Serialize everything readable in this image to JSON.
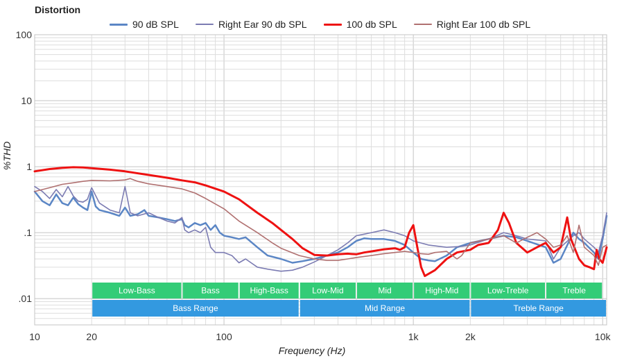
{
  "chart_data": {
    "type": "line",
    "title": "Distortion",
    "xlabel": "Frequency (Hz)",
    "ylabel": "%THD",
    "x_scale": "log",
    "y_scale": "log",
    "xlim": [
      10,
      10500
    ],
    "ylim": [
      0.004,
      100
    ],
    "x_ticks": [
      {
        "value": 10,
        "label": "10"
      },
      {
        "value": 20,
        "label": "20"
      },
      {
        "value": 100,
        "label": "100"
      },
      {
        "value": 1000,
        "label": "1k"
      },
      {
        "value": 2000,
        "label": "2k"
      },
      {
        "value": 10000,
        "label": "10k"
      }
    ],
    "y_ticks": [
      {
        "value": 100,
        "label": "100"
      },
      {
        "value": 10,
        "label": "10"
      },
      {
        "value": 1,
        "label": "1"
      },
      {
        "value": 0.1,
        "label": ".1"
      },
      {
        "value": 0.01,
        "label": ".01"
      }
    ],
    "series": [
      {
        "name": "90 dB SPL",
        "color": "#5b86c5",
        "points": [
          [
            10,
            0.42
          ],
          [
            11,
            0.3
          ],
          [
            12,
            0.26
          ],
          [
            13,
            0.38
          ],
          [
            14,
            0.28
          ],
          [
            15,
            0.26
          ],
          [
            16,
            0.34
          ],
          [
            17,
            0.27
          ],
          [
            18,
            0.24
          ],
          [
            19,
            0.22
          ],
          [
            20,
            0.42
          ],
          [
            21,
            0.25
          ],
          [
            22,
            0.22
          ],
          [
            25,
            0.2
          ],
          [
            28,
            0.18
          ],
          [
            30,
            0.24
          ],
          [
            32,
            0.18
          ],
          [
            35,
            0.19
          ],
          [
            38,
            0.22
          ],
          [
            40,
            0.18
          ],
          [
            45,
            0.17
          ],
          [
            50,
            0.16
          ],
          [
            55,
            0.15
          ],
          [
            60,
            0.16
          ],
          [
            62,
            0.13
          ],
          [
            65,
            0.12
          ],
          [
            70,
            0.14
          ],
          [
            75,
            0.13
          ],
          [
            80,
            0.14
          ],
          [
            85,
            0.11
          ],
          [
            90,
            0.13
          ],
          [
            95,
            0.1
          ],
          [
            100,
            0.09
          ],
          [
            110,
            0.085
          ],
          [
            120,
            0.08
          ],
          [
            130,
            0.085
          ],
          [
            150,
            0.06
          ],
          [
            170,
            0.045
          ],
          [
            200,
            0.04
          ],
          [
            230,
            0.035
          ],
          [
            260,
            0.037
          ],
          [
            300,
            0.04
          ],
          [
            350,
            0.045
          ],
          [
            400,
            0.05
          ],
          [
            450,
            0.06
          ],
          [
            500,
            0.075
          ],
          [
            550,
            0.082
          ],
          [
            600,
            0.08
          ],
          [
            700,
            0.08
          ],
          [
            800,
            0.075
          ],
          [
            900,
            0.065
          ],
          [
            1000,
            0.05
          ],
          [
            1100,
            0.04
          ],
          [
            1200,
            0.038
          ],
          [
            1300,
            0.037
          ],
          [
            1500,
            0.045
          ],
          [
            1700,
            0.06
          ],
          [
            2000,
            0.07
          ],
          [
            2500,
            0.08
          ],
          [
            3000,
            0.09
          ],
          [
            3500,
            0.085
          ],
          [
            4000,
            0.075
          ],
          [
            5000,
            0.06
          ],
          [
            5500,
            0.035
          ],
          [
            6000,
            0.04
          ],
          [
            7000,
            0.1
          ],
          [
            7500,
            0.08
          ],
          [
            8000,
            0.07
          ],
          [
            9000,
            0.05
          ],
          [
            9500,
            0.04
          ],
          [
            10000,
            0.08
          ],
          [
            10500,
            0.18
          ]
        ]
      },
      {
        "name": "Right Ear 90 db SPL",
        "color": "#7b7bb2",
        "points": [
          [
            10,
            0.5
          ],
          [
            11,
            0.42
          ],
          [
            12,
            0.33
          ],
          [
            13,
            0.45
          ],
          [
            14,
            0.35
          ],
          [
            15,
            0.5
          ],
          [
            16,
            0.36
          ],
          [
            17,
            0.3
          ],
          [
            18,
            0.29
          ],
          [
            19,
            0.32
          ],
          [
            20,
            0.48
          ],
          [
            22,
            0.28
          ],
          [
            25,
            0.22
          ],
          [
            28,
            0.2
          ],
          [
            30,
            0.5
          ],
          [
            32,
            0.2
          ],
          [
            35,
            0.18
          ],
          [
            40,
            0.2
          ],
          [
            45,
            0.17
          ],
          [
            50,
            0.15
          ],
          [
            55,
            0.14
          ],
          [
            60,
            0.17
          ],
          [
            62,
            0.11
          ],
          [
            65,
            0.1
          ],
          [
            70,
            0.11
          ],
          [
            75,
            0.1
          ],
          [
            80,
            0.12
          ],
          [
            85,
            0.06
          ],
          [
            90,
            0.05
          ],
          [
            100,
            0.05
          ],
          [
            110,
            0.045
          ],
          [
            120,
            0.035
          ],
          [
            130,
            0.04
          ],
          [
            150,
            0.03
          ],
          [
            170,
            0.028
          ],
          [
            200,
            0.026
          ],
          [
            230,
            0.027
          ],
          [
            260,
            0.03
          ],
          [
            300,
            0.036
          ],
          [
            350,
            0.045
          ],
          [
            400,
            0.055
          ],
          [
            450,
            0.07
          ],
          [
            500,
            0.09
          ],
          [
            550,
            0.095
          ],
          [
            600,
            0.1
          ],
          [
            700,
            0.11
          ],
          [
            800,
            0.1
          ],
          [
            900,
            0.09
          ],
          [
            1000,
            0.075
          ],
          [
            1200,
            0.065
          ],
          [
            1500,
            0.06
          ],
          [
            1800,
            0.062
          ],
          [
            2000,
            0.065
          ],
          [
            2500,
            0.08
          ],
          [
            3000,
            0.1
          ],
          [
            3500,
            0.09
          ],
          [
            4000,
            0.08
          ],
          [
            5000,
            0.075
          ],
          [
            5500,
            0.04
          ],
          [
            6000,
            0.06
          ],
          [
            7000,
            0.09
          ],
          [
            7500,
            0.1
          ],
          [
            8000,
            0.08
          ],
          [
            9000,
            0.06
          ],
          [
            9500,
            0.05
          ],
          [
            10000,
            0.09
          ],
          [
            10500,
            0.2
          ]
        ]
      },
      {
        "name": "100 db SPL",
        "color": "#ee1111",
        "points": [
          [
            10,
            0.85
          ],
          [
            12,
            0.92
          ],
          [
            14,
            0.96
          ],
          [
            16,
            0.98
          ],
          [
            18,
            0.97
          ],
          [
            20,
            0.95
          ],
          [
            25,
            0.9
          ],
          [
            30,
            0.85
          ],
          [
            40,
            0.75
          ],
          [
            50,
            0.68
          ],
          [
            60,
            0.62
          ],
          [
            70,
            0.58
          ],
          [
            80,
            0.52
          ],
          [
            100,
            0.42
          ],
          [
            120,
            0.32
          ],
          [
            150,
            0.2
          ],
          [
            180,
            0.14
          ],
          [
            200,
            0.11
          ],
          [
            230,
            0.08
          ],
          [
            260,
            0.058
          ],
          [
            300,
            0.046
          ],
          [
            350,
            0.045
          ],
          [
            400,
            0.047
          ],
          [
            450,
            0.048
          ],
          [
            500,
            0.047
          ],
          [
            550,
            0.05
          ],
          [
            600,
            0.052
          ],
          [
            700,
            0.056
          ],
          [
            800,
            0.058
          ],
          [
            850,
            0.055
          ],
          [
            900,
            0.06
          ],
          [
            950,
            0.1
          ],
          [
            1000,
            0.13
          ],
          [
            1050,
            0.06
          ],
          [
            1100,
            0.03
          ],
          [
            1150,
            0.022
          ],
          [
            1300,
            0.027
          ],
          [
            1500,
            0.04
          ],
          [
            1700,
            0.05
          ],
          [
            2000,
            0.055
          ],
          [
            2200,
            0.065
          ],
          [
            2500,
            0.07
          ],
          [
            2800,
            0.11
          ],
          [
            3000,
            0.2
          ],
          [
            3200,
            0.14
          ],
          [
            3500,
            0.07
          ],
          [
            4000,
            0.05
          ],
          [
            4500,
            0.06
          ],
          [
            5000,
            0.07
          ],
          [
            5500,
            0.05
          ],
          [
            6000,
            0.06
          ],
          [
            6500,
            0.17
          ],
          [
            6800,
            0.08
          ],
          [
            7500,
            0.04
          ],
          [
            8000,
            0.032
          ],
          [
            8500,
            0.03
          ],
          [
            9000,
            0.028
          ],
          [
            9300,
            0.055
          ],
          [
            9600,
            0.04
          ],
          [
            10000,
            0.035
          ],
          [
            10500,
            0.06
          ]
        ]
      },
      {
        "name": "Right Ear 100 db SPL",
        "color": "#b07070",
        "points": [
          [
            10,
            0.42
          ],
          [
            12,
            0.48
          ],
          [
            14,
            0.54
          ],
          [
            16,
            0.57
          ],
          [
            18,
            0.6
          ],
          [
            20,
            0.62
          ],
          [
            25,
            0.61
          ],
          [
            30,
            0.63
          ],
          [
            32,
            0.66
          ],
          [
            35,
            0.6
          ],
          [
            40,
            0.55
          ],
          [
            50,
            0.5
          ],
          [
            60,
            0.46
          ],
          [
            70,
            0.4
          ],
          [
            80,
            0.33
          ],
          [
            100,
            0.23
          ],
          [
            120,
            0.15
          ],
          [
            150,
            0.1
          ],
          [
            180,
            0.07
          ],
          [
            200,
            0.058
          ],
          [
            220,
            0.052
          ],
          [
            250,
            0.045
          ],
          [
            300,
            0.04
          ],
          [
            350,
            0.038
          ],
          [
            400,
            0.038
          ],
          [
            450,
            0.04
          ],
          [
            500,
            0.042
          ],
          [
            600,
            0.045
          ],
          [
            700,
            0.048
          ],
          [
            800,
            0.05
          ],
          [
            900,
            0.052
          ],
          [
            1000,
            0.05
          ],
          [
            1100,
            0.048
          ],
          [
            1200,
            0.047
          ],
          [
            1300,
            0.05
          ],
          [
            1500,
            0.052
          ],
          [
            1700,
            0.04
          ],
          [
            1800,
            0.045
          ],
          [
            2000,
            0.07
          ],
          [
            2500,
            0.08
          ],
          [
            3000,
            0.09
          ],
          [
            3500,
            0.07
          ],
          [
            4000,
            0.085
          ],
          [
            4500,
            0.1
          ],
          [
            5000,
            0.08
          ],
          [
            5500,
            0.06
          ],
          [
            6000,
            0.065
          ],
          [
            6500,
            0.09
          ],
          [
            7000,
            0.05
          ],
          [
            7500,
            0.13
          ],
          [
            8000,
            0.06
          ],
          [
            9000,
            0.045
          ],
          [
            9500,
            0.032
          ],
          [
            10000,
            0.06
          ],
          [
            10500,
            0.065
          ]
        ]
      }
    ],
    "bands": [
      {
        "label": "Low-Bass",
        "from": 20,
        "to": 60,
        "row": 1,
        "color": "#33cc77"
      },
      {
        "label": "Bass",
        "from": 60,
        "to": 120,
        "row": 1,
        "color": "#33cc77"
      },
      {
        "label": "High-Bass",
        "from": 120,
        "to": 250,
        "row": 1,
        "color": "#33cc77"
      },
      {
        "label": "Low-Mid",
        "from": 250,
        "to": 500,
        "row": 1,
        "color": "#33cc77"
      },
      {
        "label": "Mid",
        "from": 500,
        "to": 1000,
        "row": 1,
        "color": "#33cc77"
      },
      {
        "label": "High-Mid",
        "from": 1000,
        "to": 2000,
        "row": 1,
        "color": "#33cc77"
      },
      {
        "label": "Low-Treble",
        "from": 2000,
        "to": 5000,
        "row": 1,
        "color": "#33cc77"
      },
      {
        "label": "Treble",
        "from": 5000,
        "to": 10000,
        "row": 1,
        "color": "#33cc77"
      },
      {
        "label": "Bass Range",
        "from": 20,
        "to": 250,
        "row": 2,
        "color": "#3399e0"
      },
      {
        "label": "Mid Range",
        "from": 250,
        "to": 2000,
        "row": 2,
        "color": "#3399e0"
      },
      {
        "label": "Treble Range",
        "from": 2000,
        "to": 10500,
        "row": 2,
        "color": "#3399e0"
      }
    ]
  }
}
